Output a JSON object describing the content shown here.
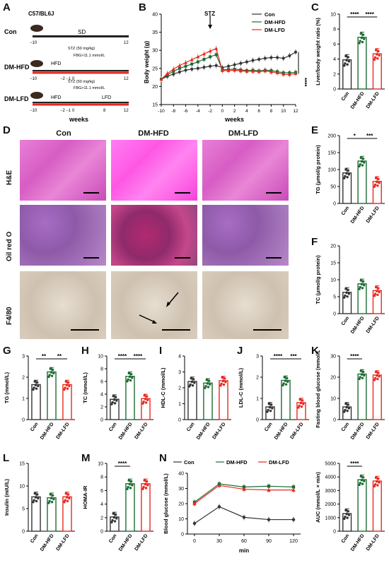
{
  "panels": {
    "A": "A",
    "B": "B",
    "C": "C",
    "D": "D",
    "E": "E",
    "F": "F",
    "G": "G",
    "H": "H",
    "I": "I",
    "J": "J",
    "K": "K",
    "L": "L",
    "M": "M",
    "N": "N"
  },
  "groups": [
    "Con",
    "DM-HFD",
    "DM-LFD"
  ],
  "colors": {
    "con": "#333333",
    "hfd": "#1d6b33",
    "lfd": "#e8281e"
  },
  "schema": {
    "strain": "C57/BL6J",
    "rows": [
      {
        "name": "Con",
        "diet": "SD"
      },
      {
        "name": "DM-HFD",
        "diet": "HFD",
        "stz": "STZ (50 mg/kg)",
        "fbg": "FBG>11.1 mmol/L"
      },
      {
        "name": "DM-LFD",
        "diet": "HFD",
        "diet2": "LFD",
        "stz": "STZ (50 mg/kg)",
        "fbg": "FBG>11.1 mmol/L"
      }
    ],
    "ticks": [
      "−10",
      "−2",
      "−1",
      "0",
      "8",
      "12"
    ],
    "xlabel": "weeks"
  },
  "panelB": {
    "ylabel": "Body weight (g)",
    "xlabel": "weeks",
    "annotation": "STZ",
    "sig": "****",
    "xticks": [
      "-10",
      "-8",
      "-6",
      "-4",
      "-2",
      "0",
      "2",
      "4",
      "6",
      "8",
      "10",
      "12"
    ],
    "yticks": [
      "15",
      "20",
      "25",
      "30",
      "35",
      "40"
    ]
  },
  "histology": {
    "cols": [
      "Con",
      "DM-HFD",
      "DM-LFD"
    ],
    "rows": [
      "H&E",
      "Oil red O",
      "F4/80"
    ]
  },
  "chart_data": [
    {
      "panel": "B",
      "type": "line",
      "x": [
        -10,
        -9,
        -8,
        -7,
        -6,
        -5,
        -4,
        -3,
        -2,
        -1,
        0,
        1,
        2,
        3,
        4,
        5,
        6,
        7,
        8,
        9,
        10,
        11,
        12
      ],
      "ylim": [
        15,
        40
      ],
      "series": [
        {
          "name": "Con",
          "values": [
            22,
            22.8,
            23.4,
            24,
            24.5,
            24.8,
            25,
            25.3,
            25.6,
            25.8,
            25.2,
            25.6,
            26,
            26.4,
            26.8,
            27.2,
            27.5,
            27.8,
            28,
            28,
            27.8,
            28.5,
            29.5
          ]
        },
        {
          "name": "DM-HFD",
          "values": [
            22,
            23.2,
            24.2,
            25,
            25.6,
            26.2,
            26.8,
            27.5,
            28.2,
            28.8,
            24.6,
            24.7,
            24.8,
            24.6,
            24.4,
            24.5,
            24.3,
            24.5,
            24.4,
            24.1,
            23.8,
            23.8,
            23.9
          ]
        },
        {
          "name": "DM-LFD",
          "values": [
            22,
            23.6,
            24.8,
            25.8,
            26.6,
            27.4,
            28.2,
            29,
            29.8,
            30.5,
            24.4,
            24.4,
            24.5,
            24.3,
            24.2,
            24.2,
            24.1,
            24.3,
            24.0,
            23.8,
            23.4,
            23.3,
            23.6
          ]
        }
      ]
    },
    {
      "panel": "C",
      "type": "bar",
      "ylabel": "Liver/body weight ratio (%)",
      "ylim": [
        0,
        10
      ],
      "yticks": [
        "0",
        "2",
        "4",
        "6",
        "8",
        "10"
      ],
      "categories": [
        "Con",
        "DM-HFD",
        "DM-LFD"
      ],
      "values": [
        3.9,
        6.9,
        4.7
      ],
      "sig": [
        "****",
        "****"
      ]
    },
    {
      "panel": "E",
      "type": "bar",
      "ylabel": "TG (μmol/g protein)",
      "ylim": [
        0,
        200
      ],
      "yticks": [
        "0",
        "50",
        "100",
        "150",
        "200"
      ],
      "categories": [
        "Con",
        "DM-HFD",
        "DM-LFD"
      ],
      "values": [
        90,
        125,
        65
      ],
      "sig": [
        "*",
        "***"
      ]
    },
    {
      "panel": "F",
      "type": "bar",
      "ylabel": "TC (μmol/g protein)",
      "ylim": [
        0,
        20
      ],
      "yticks": [
        "0",
        "5",
        "10",
        "15",
        "20"
      ],
      "categories": [
        "Con",
        "DM-HFD",
        "DM-LFD"
      ],
      "values": [
        6.3,
        8.8,
        6.8
      ],
      "sig": []
    },
    {
      "panel": "G",
      "type": "bar",
      "ylabel": "TG (mmol/L)",
      "ylim": [
        0,
        3
      ],
      "yticks": [
        "0",
        "1",
        "2",
        "3"
      ],
      "categories": [
        "Con",
        "DM-HFD",
        "DM-LFD"
      ],
      "values": [
        1.65,
        2.25,
        1.65
      ],
      "sig": [
        "**",
        "**"
      ]
    },
    {
      "panel": "H",
      "type": "bar",
      "ylabel": "TC (mmol/L)",
      "ylim": [
        0,
        10
      ],
      "yticks": [
        "0",
        "2",
        "4",
        "6",
        "8",
        "10"
      ],
      "categories": [
        "Con",
        "DM-HFD",
        "DM-LFD"
      ],
      "values": [
        3.2,
        6.8,
        3.3
      ],
      "sig": [
        "****",
        "****"
      ]
    },
    {
      "panel": "I",
      "type": "bar",
      "ylabel": "HDL-C (mmol/L)",
      "ylim": [
        0,
        4
      ],
      "yticks": [
        "0",
        "1",
        "2",
        "3",
        "4"
      ],
      "categories": [
        "Con",
        "DM-HFD",
        "DM-LFD"
      ],
      "values": [
        2.4,
        2.3,
        2.45
      ],
      "sig": []
    },
    {
      "panel": "J",
      "type": "bar",
      "ylabel": "LDL-C (mmol/L)",
      "ylim": [
        0,
        3
      ],
      "yticks": [
        "0",
        "1",
        "2",
        "3"
      ],
      "categories": [
        "Con",
        "DM-HFD",
        "DM-LFD"
      ],
      "values": [
        0.6,
        1.85,
        0.8
      ],
      "sig": [
        "****",
        "***"
      ]
    },
    {
      "panel": "K",
      "type": "bar",
      "ylabel": "Fasting blood glucose (mmol/L)",
      "ylim": [
        0,
        30
      ],
      "yticks": [
        "0",
        "10",
        "20",
        "30"
      ],
      "categories": [
        "Con",
        "DM-HFD",
        "DM-LFD"
      ],
      "values": [
        6,
        21.5,
        21
      ],
      "sig": [
        "****"
      ]
    },
    {
      "panel": "L",
      "type": "bar",
      "ylabel": "Insulin (mIU/L)",
      "ylim": [
        0,
        15
      ],
      "yticks": [
        "0",
        "5",
        "10",
        "15"
      ],
      "categories": [
        "Con",
        "DM-HFD",
        "DM-LFD"
      ],
      "values": [
        7.6,
        7.4,
        7.6
      ],
      "sig": []
    },
    {
      "panel": "M",
      "type": "bar",
      "ylabel": "HOMA-IR",
      "ylim": [
        0,
        10
      ],
      "yticks": [
        "0",
        "2",
        "4",
        "6",
        "8",
        "10"
      ],
      "categories": [
        "Con",
        "DM-HFD",
        "DM-LFD"
      ],
      "values": [
        2.1,
        7,
        7
      ],
      "sig": [
        "****"
      ]
    },
    {
      "panel": "N",
      "type": "line",
      "ylabel": "Blood glucose (mmol/L)",
      "xlabel": "min",
      "ylim": [
        0,
        40
      ],
      "yticks": [
        "0",
        "10",
        "20",
        "30",
        "40"
      ],
      "x": [
        0,
        30,
        60,
        90,
        120
      ],
      "series": [
        {
          "name": "Con",
          "values": [
            7,
            18,
            11,
            9.5,
            9.5
          ]
        },
        {
          "name": "DM-HFD",
          "values": [
            21,
            33,
            31,
            31.5,
            31
          ]
        },
        {
          "name": "DM-LFD",
          "values": [
            20,
            32,
            29.5,
            29,
            29
          ]
        }
      ]
    },
    {
      "panel": "N-AUC",
      "type": "bar",
      "ylabel": "AUC (mmol/L × min)",
      "ylim": [
        0,
        5000
      ],
      "yticks": [
        "0",
        "1000",
        "2000",
        "3000",
        "4000",
        "5000"
      ],
      "categories": [
        "Con",
        "DM-HFD",
        "DM-LFD"
      ],
      "values": [
        1300,
        3800,
        3700
      ],
      "sig": [
        "****"
      ]
    }
  ]
}
